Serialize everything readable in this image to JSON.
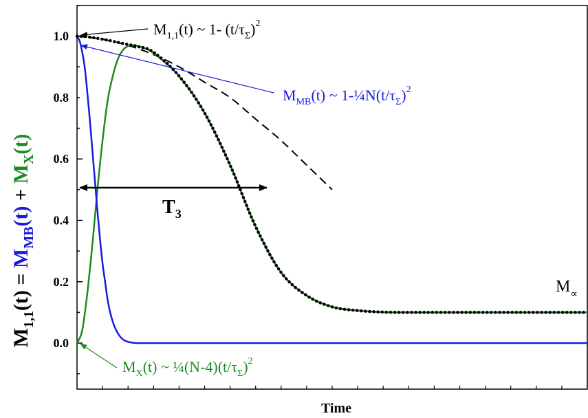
{
  "chart_data": {
    "type": "line",
    "xlabel": "Time",
    "ylabel": {
      "prefix": "M",
      "prefix_sub": "1,1",
      "prefix_suffix": "(t) = ",
      "mb": "M",
      "mb_sub": "MB",
      "mb_suffix": "(t)",
      "plus": " + ",
      "x": "M",
      "x_sub": "X",
      "x_suffix": "(t)"
    },
    "xlim": [
      0,
      1
    ],
    "ylim": [
      -0.15,
      1.1
    ],
    "yticks": [
      "0.0",
      "0.2",
      "0.4",
      "0.6",
      "0.8",
      "1.0"
    ],
    "ytick_values": [
      0.0,
      0.2,
      0.4,
      0.6,
      0.8,
      1.0
    ],
    "colors": {
      "mb": "#1a1adb",
      "x": "#1f8a1f",
      "total": "#000000",
      "approx": "#000000"
    },
    "series": [
      {
        "key": "mb",
        "style": "solid",
        "x": [
          0,
          0.005,
          0.01,
          0.015,
          0.02,
          0.025,
          0.03,
          0.035,
          0.04,
          0.045,
          0.05,
          0.055,
          0.06,
          0.065,
          0.07,
          0.075,
          0.08,
          0.085,
          0.09,
          0.095,
          0.1,
          0.11,
          0.12,
          0.13,
          0.15,
          0.2,
          1.0
        ],
        "y": [
          1.0,
          0.985,
          0.95,
          0.9,
          0.82,
          0.73,
          0.63,
          0.53,
          0.43,
          0.34,
          0.26,
          0.2,
          0.14,
          0.1,
          0.07,
          0.048,
          0.032,
          0.02,
          0.012,
          0.007,
          0.004,
          0.001,
          0.0,
          0.0,
          0.0,
          0.0,
          0.0
        ]
      },
      {
        "key": "x",
        "style": "solid",
        "x": [
          0,
          0.01,
          0.02,
          0.03,
          0.04,
          0.05,
          0.06,
          0.07,
          0.08,
          0.09,
          0.1,
          0.11,
          0.12,
          0.13,
          0.15,
          0.2,
          0.25,
          0.3,
          0.35,
          0.4,
          0.45,
          0.5,
          0.55,
          0.6,
          0.65,
          0.7,
          0.8,
          0.9,
          1.0
        ],
        "y": [
          0.0,
          0.04,
          0.16,
          0.32,
          0.5,
          0.66,
          0.79,
          0.87,
          0.925,
          0.955,
          0.968,
          0.97,
          0.968,
          0.962,
          0.945,
          0.87,
          0.75,
          0.58,
          0.38,
          0.23,
          0.155,
          0.118,
          0.106,
          0.101,
          0.1,
          0.1,
          0.1,
          0.1,
          0.1
        ]
      },
      {
        "key": "total",
        "style": "dotted",
        "x": [
          0,
          0.02,
          0.04,
          0.06,
          0.08,
          0.1,
          0.12,
          0.15,
          0.2,
          0.25,
          0.3,
          0.35,
          0.4,
          0.45,
          0.5,
          0.55,
          0.6,
          0.65,
          0.7,
          0.8,
          0.9,
          1.0
        ],
        "y": [
          1.0,
          0.998,
          0.993,
          0.987,
          0.98,
          0.973,
          0.966,
          0.948,
          0.87,
          0.75,
          0.58,
          0.38,
          0.23,
          0.155,
          0.118,
          0.106,
          0.101,
          0.1,
          0.1,
          0.1,
          0.1,
          0.1
        ]
      },
      {
        "key": "approx",
        "style": "dashed",
        "x": [
          0,
          0.05,
          0.1,
          0.15,
          0.2,
          0.25,
          0.3,
          0.35,
          0.4,
          0.45,
          0.5
        ],
        "y": [
          1.0,
          0.99,
          0.97,
          0.94,
          0.9,
          0.85,
          0.8,
          0.73,
          0.66,
          0.58,
          0.5
        ]
      }
    ],
    "annotations": {
      "m11": {
        "base": "M",
        "sub": "1,1",
        "rest": "(t) ~ 1- (t/τ",
        "sub2": "Σ",
        "close": ")",
        "sup": "2"
      },
      "mmb": {
        "base": "M",
        "sub": "MB",
        "rest": "(t) ~ 1-¼N(t/τ",
        "sub2": "Σ",
        "close": ")",
        "sup": "2"
      },
      "mx": {
        "base": "M",
        "sub": "X",
        "rest": "(t) ~ ¼(N-4)(t/τ",
        "sub2": "Σ",
        "close": ")",
        "sup": "2"
      },
      "t3": {
        "base": "T",
        "sub": "3"
      },
      "minf": {
        "base": "M",
        "sub": "∝"
      }
    }
  }
}
